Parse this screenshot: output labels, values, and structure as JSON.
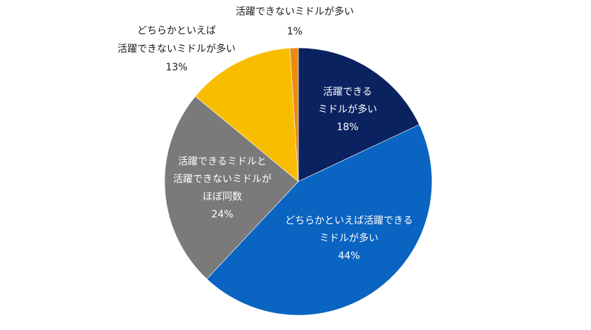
{
  "chart_data": {
    "type": "pie",
    "start_angle_deg": 0,
    "direction": "clockwise",
    "slices": [
      {
        "label_lines": [
          "活躍できる",
          "ミドルが多い"
        ],
        "value": 18,
        "value_label": "18%",
        "color": "#0b2260",
        "label_color": "#ffffff"
      },
      {
        "label_lines": [
          "どちらかといえば活躍できる",
          "ミドルが多い"
        ],
        "value": 44,
        "value_label": "44%",
        "color": "#0a64c1",
        "label_color": "#ffffff"
      },
      {
        "label_lines": [
          "活躍できるミドルと",
          "活躍できないミドルが",
          "ほぼ同数"
        ],
        "value": 24,
        "value_label": "24%",
        "color": "#7a7a7a",
        "label_color": "#ffffff"
      },
      {
        "label_lines": [
          "どちらかといえば",
          "活躍できないミドルが多い"
        ],
        "value": 13,
        "value_label": "13%",
        "color": "#f9bd00",
        "label_color": "#1a1a1a"
      },
      {
        "label_lines": [
          "活躍できないミドルが多い"
        ],
        "value": 1,
        "value_label": "1%",
        "color": "#ee8a10",
        "label_color": "#1a1a1a"
      }
    ]
  }
}
